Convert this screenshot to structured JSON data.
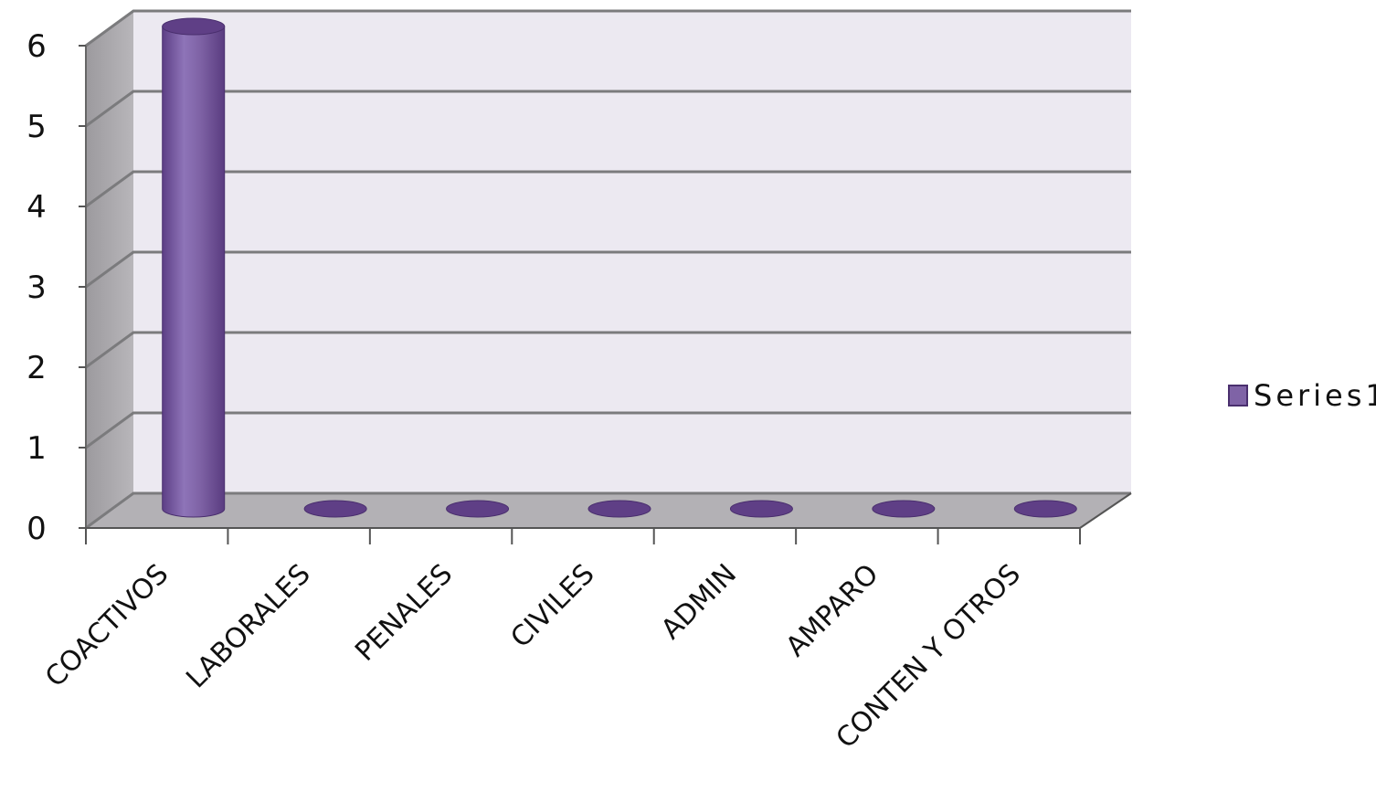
{
  "chart_data": {
    "type": "bar",
    "categories": [
      "COACTIVOS",
      "LABORALES",
      "PENALES",
      "CIVILES",
      "ADMIN",
      "AMPARO",
      "CONTEN Y OTROS"
    ],
    "series": [
      {
        "name": "Series1",
        "values": [
          6,
          0,
          0,
          0,
          0,
          0,
          0
        ]
      }
    ],
    "y_ticks": [
      "0",
      "1",
      "2",
      "3",
      "4",
      "5",
      "6"
    ],
    "ylim": [
      0,
      6
    ],
    "grid": true,
    "legend": "right",
    "bar_shape": "cylinder",
    "colors": {
      "series": "#7f63a6",
      "series_dark": "#5f3f86",
      "wall": "#ece9f1",
      "side_wall": "#a9a7ab",
      "floor": "#b3b1b5",
      "gridline": "#7b7b7d"
    }
  }
}
